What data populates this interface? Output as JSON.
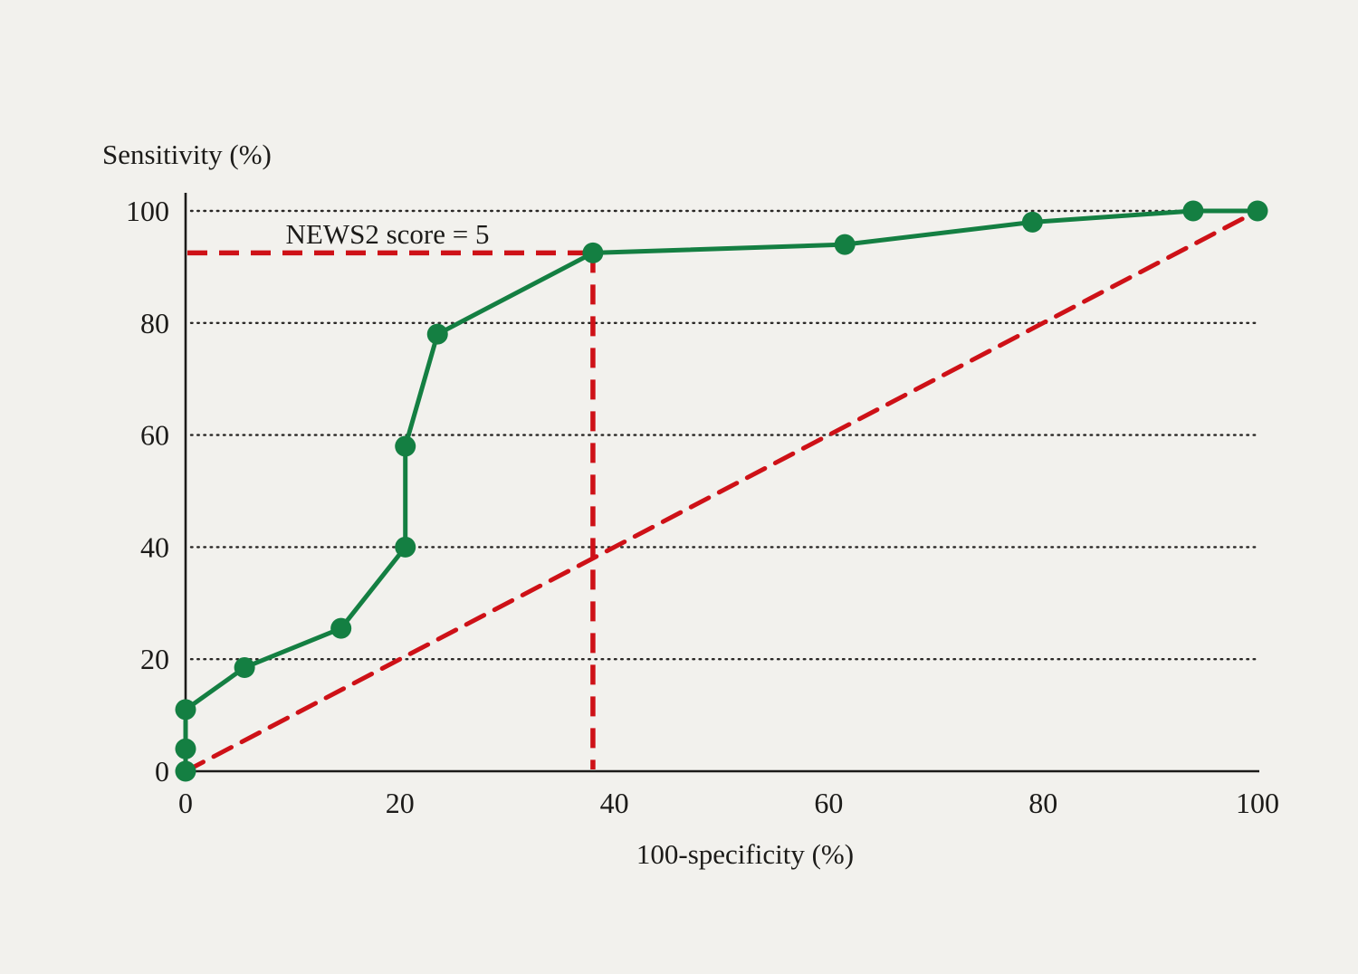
{
  "figure": {
    "background_color": "#f2f1ed",
    "text_color": "#1c1b19"
  },
  "chart_data": {
    "type": "line",
    "title": "",
    "ylabel": "Sensitivity (%)",
    "xlabel": "100-specificity (%)",
    "xlim": [
      0,
      100
    ],
    "ylim": [
      0,
      100
    ],
    "x_ticks": [
      0,
      20,
      40,
      60,
      80,
      100
    ],
    "y_ticks": [
      0,
      20,
      40,
      60,
      80,
      100
    ],
    "grid": "dotted horizontal lines at each non-zero y tick",
    "grid_color": "#2a2826",
    "axis_color": "#1c1b19",
    "legend": "none",
    "series": [
      {
        "name": "chance-reference-diagonal",
        "color": "#ce1117",
        "dashed": true,
        "markers": false,
        "points": [
          [
            0,
            0
          ],
          [
            100,
            100
          ]
        ]
      },
      {
        "name": "roc-curve",
        "color": "#147f42",
        "dashed": false,
        "markers": true,
        "points": [
          [
            0,
            0
          ],
          [
            0,
            4
          ],
          [
            0,
            11
          ],
          [
            5.5,
            18.5
          ],
          [
            14.5,
            25.5
          ],
          [
            20.5,
            40
          ],
          [
            20.5,
            58
          ],
          [
            23.5,
            78
          ],
          [
            38,
            92.5
          ],
          [
            61.5,
            94
          ],
          [
            79,
            98
          ],
          [
            94,
            100
          ],
          [
            100,
            100
          ]
        ]
      }
    ],
    "annotation": {
      "label": "NEWS2 score = 5",
      "point": [
        38,
        92.5
      ],
      "color": "#ce1117",
      "style": "dashed guide lines from y-axis to point and from point down to x-axis"
    }
  }
}
